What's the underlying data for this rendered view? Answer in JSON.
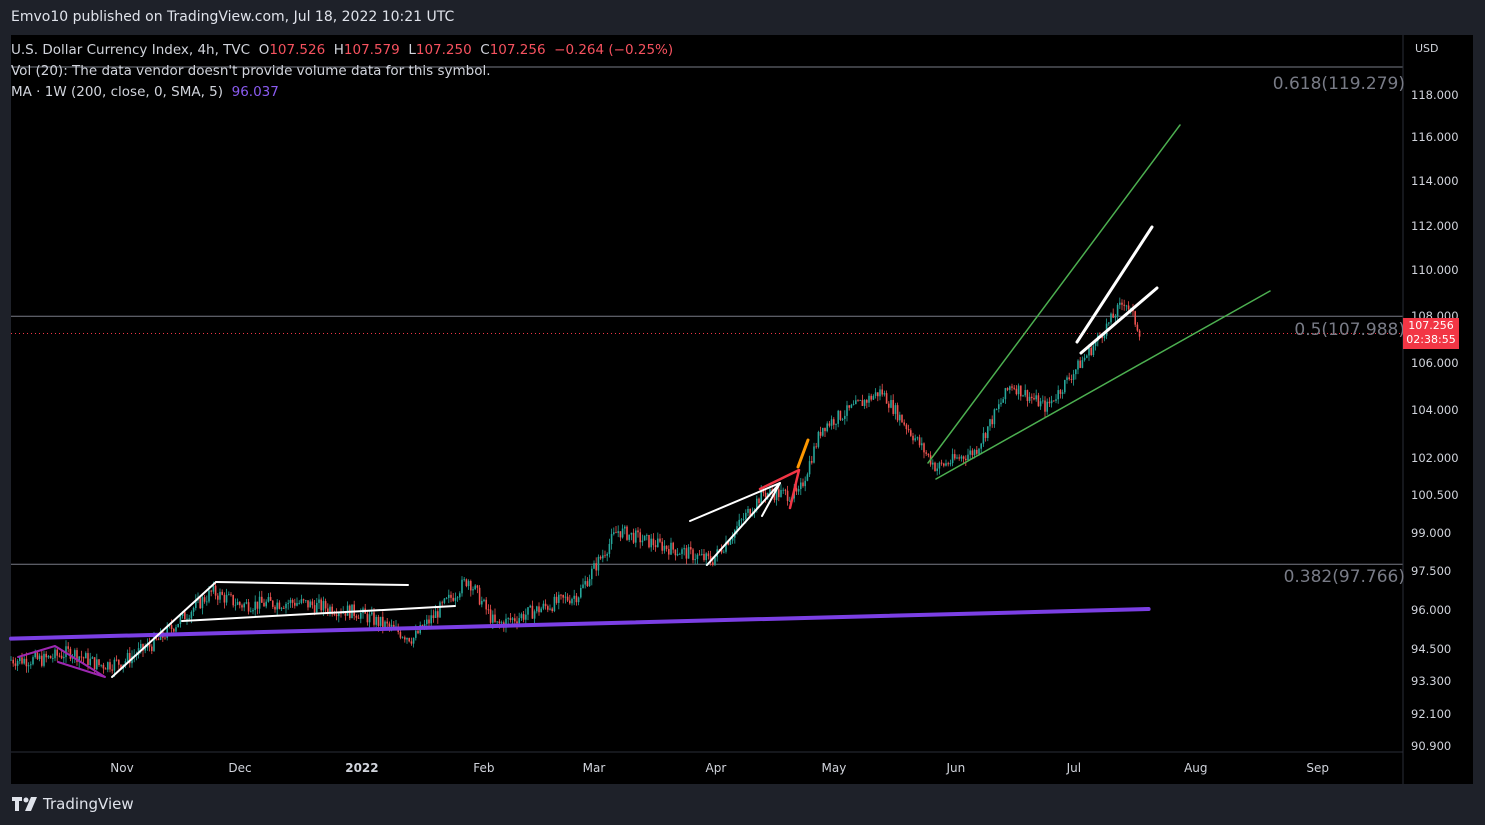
{
  "header": {
    "published": "Emvo10 published on TradingView.com, Jul 18, 2022 10:21 UTC"
  },
  "legend": {
    "symbol": "U.S. Dollar Currency Index, 4h, TVC",
    "o_label": "O",
    "o_value": "107.526",
    "h_label": "H",
    "h_value": "107.579",
    "l_label": "L",
    "l_value": "107.250",
    "c_label": "C",
    "c_value": "107.256",
    "change": "−0.264 (−0.25%)",
    "vol": "Vol (20): The data vendor doesn't provide volume data for this symbol.",
    "ma": "MA · 1W (200, close, 0, SMA, 5)",
    "ma_value": "96.037"
  },
  "fib": [
    {
      "label": "0.618(119.279)",
      "value": 119.279
    },
    {
      "label": "0.5(107.988)",
      "value": 107.988
    },
    {
      "label": "0.382(97.766)",
      "value": 97.766
    }
  ],
  "price_badge": {
    "price": "107.256",
    "countdown": "02:38:55"
  },
  "footer": {
    "brand": "TradingView"
  },
  "colors": {
    "up": "#26a69a",
    "down": "#ef5350",
    "ma": "#7b3fe4",
    "trend": "#4caf50",
    "fibline": "#787b86"
  },
  "chart_data": {
    "type": "candlestick",
    "title": "U.S. Dollar Currency Index, 4h, TVC",
    "currency": "USD",
    "y_ticks": [
      "118.000",
      "116.000",
      "114.000",
      "112.000",
      "110.000",
      "108.000",
      "106.000",
      "104.000",
      "102.000",
      "100.500",
      "99.000",
      "97.500",
      "96.000",
      "94.500",
      "93.300",
      "92.100",
      "90.900"
    ],
    "x_ticks": [
      "Nov",
      "Dec",
      "2022",
      "Feb",
      "Mar",
      "Apr",
      "May",
      "Jun",
      "Jul",
      "Aug",
      "Sep"
    ],
    "close_path": [
      [
        "2021-10-12",
        94.1
      ],
      [
        "2021-10-19",
        94.4
      ],
      [
        "2021-10-26",
        93.9
      ],
      [
        "2021-11-01",
        94.0
      ],
      [
        "2021-11-10",
        94.8
      ],
      [
        "2021-11-17",
        95.8
      ],
      [
        "2021-11-24",
        96.7
      ],
      [
        "2021-12-01",
        96.2
      ],
      [
        "2021-12-15",
        96.3
      ],
      [
        "2021-12-31",
        95.9
      ],
      [
        "2022-01-14",
        94.9
      ],
      [
        "2022-01-28",
        97.2
      ],
      [
        "2022-02-04",
        95.4
      ],
      [
        "2022-02-25",
        96.6
      ],
      [
        "2022-03-07",
        99.1
      ],
      [
        "2022-03-14",
        98.7
      ],
      [
        "2022-03-31",
        97.9
      ],
      [
        "2022-04-13",
        100.6
      ],
      [
        "2022-04-22",
        100.5
      ],
      [
        "2022-04-28",
        103.3
      ],
      [
        "2022-05-13",
        104.8
      ],
      [
        "2022-05-27",
        101.6
      ],
      [
        "2022-06-06",
        102.3
      ],
      [
        "2022-06-15",
        105.1
      ],
      [
        "2022-06-24",
        104.1
      ],
      [
        "2022-07-05",
        106.5
      ],
      [
        "2022-07-14",
        108.7
      ],
      [
        "2022-07-18",
        107.256
      ]
    ],
    "ma_200w_sma": {
      "start": 94.9,
      "end": 96.037
    },
    "fib_levels": [
      {
        "ratio": 0.618,
        "value": 119.279
      },
      {
        "ratio": 0.5,
        "value": 107.988
      },
      {
        "ratio": 0.382,
        "value": 97.766
      }
    ],
    "last_price": 107.256
  }
}
